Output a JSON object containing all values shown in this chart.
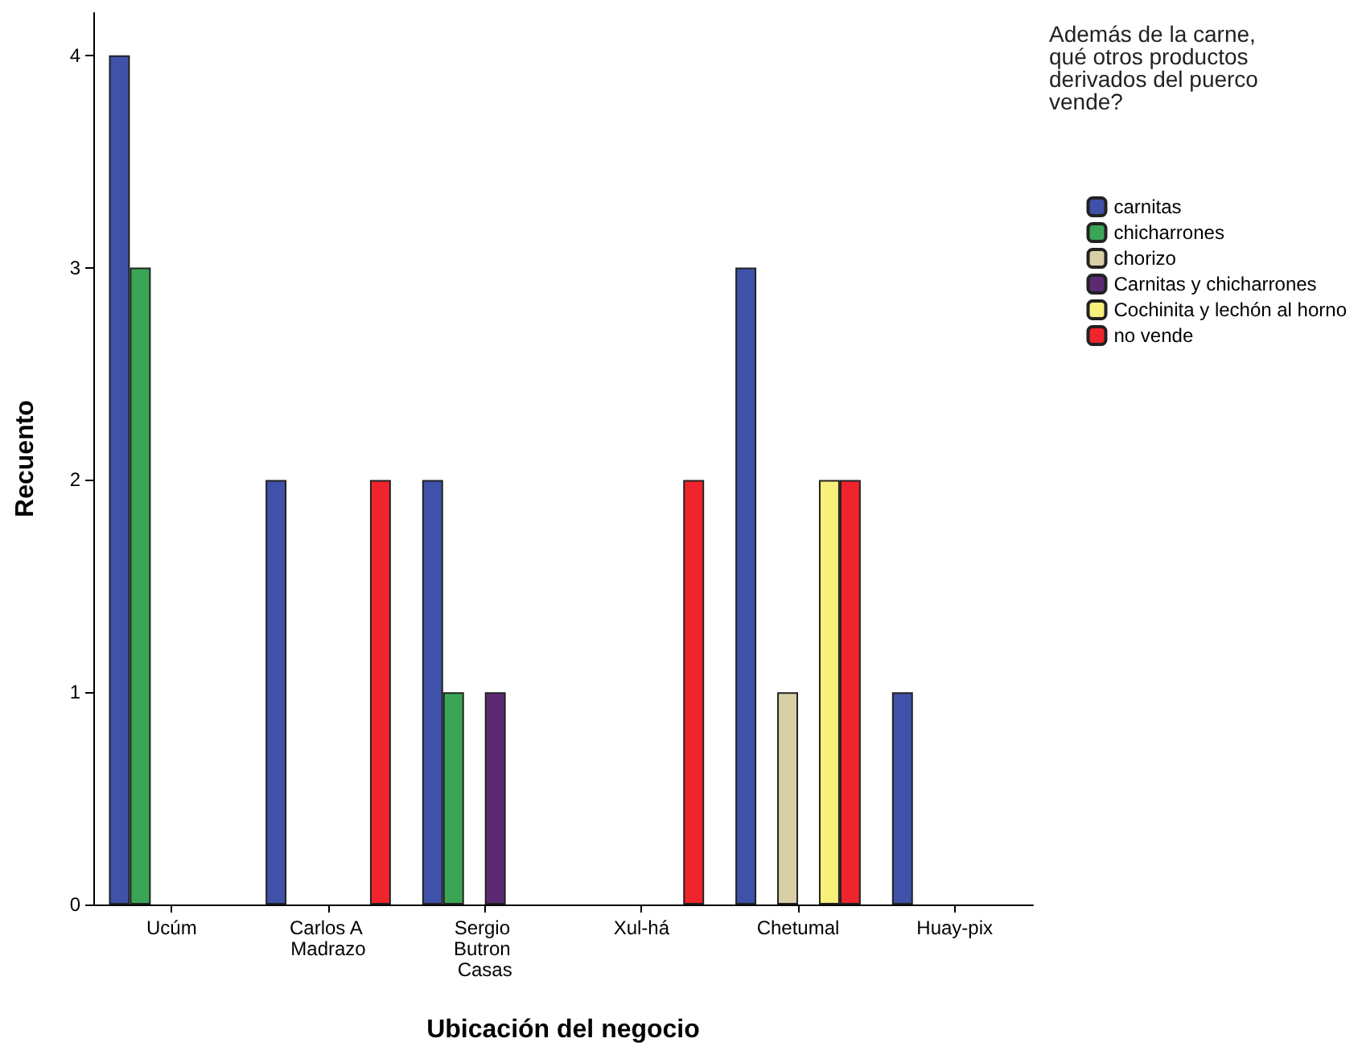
{
  "chart_data": {
    "type": "bar",
    "xlabel": "Ubicación del negocio",
    "ylabel": "Recuento",
    "legend_title": "Además de la carne, qué otros productos derivados del puerco vende?",
    "categories": [
      "Ucúm",
      "Carlos A Madrazo",
      "Sergio Butron Casas",
      "Xul-há",
      "Chetumal",
      "Huay-pix"
    ],
    "series": [
      {
        "name": "carnitas",
        "color": "#3f51a8",
        "values": [
          4,
          2,
          2,
          null,
          3,
          1
        ]
      },
      {
        "name": "chicharrones",
        "color": "#3aa655",
        "values": [
          3,
          null,
          1,
          null,
          null,
          null
        ]
      },
      {
        "name": "chorizo",
        "color": "#d8cfa6",
        "values": [
          null,
          null,
          null,
          null,
          1,
          null
        ]
      },
      {
        "name": "Carnitas y chicharrones",
        "color": "#5c2a72",
        "values": [
          null,
          null,
          1,
          null,
          null,
          null
        ]
      },
      {
        "name": "Cochinita y lechón al horno",
        "color": "#f7f07a",
        "values": [
          null,
          null,
          null,
          null,
          2,
          null
        ]
      },
      {
        "name": "no vende",
        "color": "#f0242c",
        "values": [
          null,
          2,
          null,
          2,
          2,
          null
        ]
      }
    ],
    "ylim": [
      0,
      4.2
    ],
    "yticks": [
      0,
      1,
      2,
      3,
      4
    ],
    "grid": false,
    "legend": "right"
  }
}
